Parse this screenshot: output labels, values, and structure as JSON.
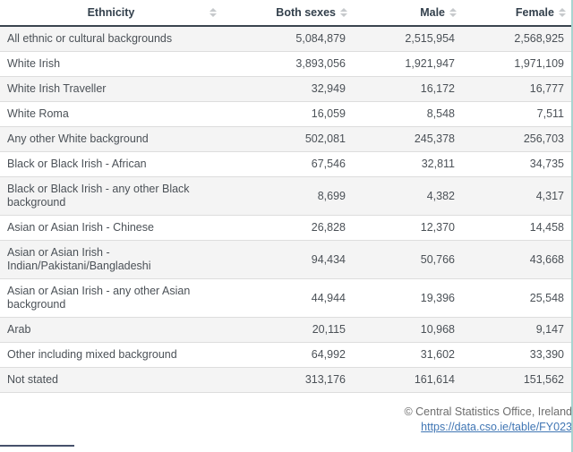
{
  "table": {
    "columns": [
      {
        "label": "Ethnicity",
        "sortable": true
      },
      {
        "label": "Both sexes",
        "sortable": true
      },
      {
        "label": "Male",
        "sortable": true
      },
      {
        "label": "Female",
        "sortable": true
      }
    ],
    "rows": [
      {
        "ethnicity": "All ethnic or cultural backgrounds",
        "both_sexes": "5,084,879",
        "male": "2,515,954",
        "female": "2,568,925"
      },
      {
        "ethnicity": "White Irish",
        "both_sexes": "3,893,056",
        "male": "1,921,947",
        "female": "1,971,109"
      },
      {
        "ethnicity": "White Irish Traveller",
        "both_sexes": "32,949",
        "male": "16,172",
        "female": "16,777"
      },
      {
        "ethnicity": "White Roma",
        "both_sexes": "16,059",
        "male": "8,548",
        "female": "7,511"
      },
      {
        "ethnicity": "Any other White background",
        "both_sexes": "502,081",
        "male": "245,378",
        "female": "256,703"
      },
      {
        "ethnicity": "Black or Black Irish - African",
        "both_sexes": "67,546",
        "male": "32,811",
        "female": "34,735"
      },
      {
        "ethnicity": "Black or Black Irish - any other Black background",
        "both_sexes": "8,699",
        "male": "4,382",
        "female": "4,317"
      },
      {
        "ethnicity": "Asian or Asian Irish - Chinese",
        "both_sexes": "26,828",
        "male": "12,370",
        "female": "14,458"
      },
      {
        "ethnicity": "Asian or Asian Irish - Indian/Pakistani/Bangladeshi",
        "both_sexes": "94,434",
        "male": "50,766",
        "female": "43,668"
      },
      {
        "ethnicity": "Asian or Asian Irish - any other Asian background",
        "both_sexes": "44,944",
        "male": "19,396",
        "female": "25,548"
      },
      {
        "ethnicity": "Arab",
        "both_sexes": "20,115",
        "male": "10,968",
        "female": "9,147"
      },
      {
        "ethnicity": "Other including mixed background",
        "both_sexes": "64,992",
        "male": "31,602",
        "female": "33,390"
      },
      {
        "ethnicity": "Not stated",
        "both_sexes": "313,176",
        "male": "161,614",
        "female": "151,562"
      }
    ]
  },
  "footer": {
    "copyright": "© Central Statistics Office, Ireland",
    "link_text": "https://data.cso.ie/table/FY023"
  },
  "colors": {
    "header_text": "#33404c",
    "header_border": "#3a444f",
    "row_text": "#4b5157",
    "stripe": "#f4f4f4",
    "row_border": "#dddddd",
    "sort_icon": "#c6c9cc",
    "link": "#4076b4",
    "copyright_text": "#6d6d6d",
    "right_edge_strip": "#a9d4d0",
    "bottom_tab_line": "#47516b"
  }
}
